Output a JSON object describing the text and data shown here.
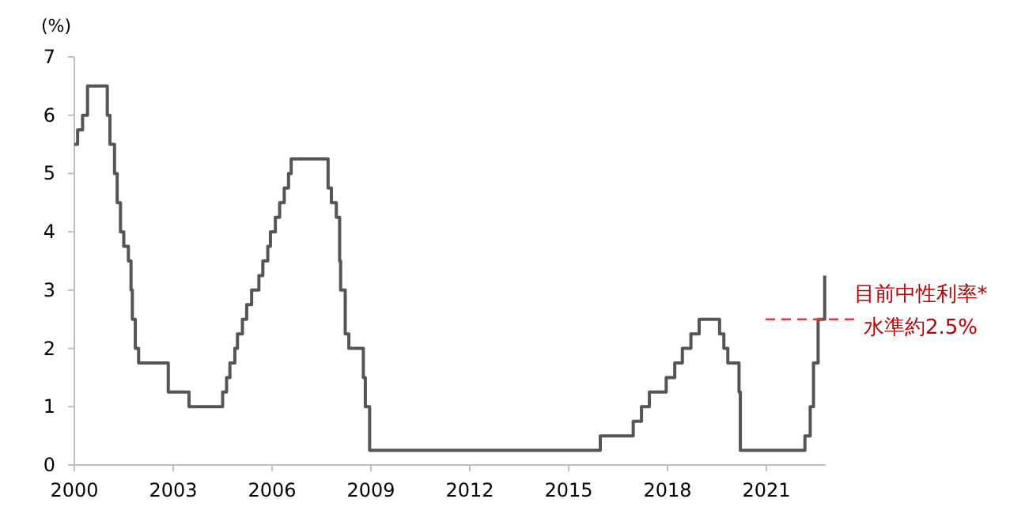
{
  "chart_data": {
    "type": "step",
    "ylabel": "(%)",
    "x": [
      2000.0,
      2000.1,
      2000.25,
      2000.4,
      2001.0,
      2001.08,
      2001.22,
      2001.3,
      2001.4,
      2001.5,
      2001.64,
      2001.72,
      2001.76,
      2001.85,
      2001.95,
      2002.85,
      2003.48,
      2004.5,
      2004.62,
      2004.72,
      2004.87,
      2004.95,
      2005.1,
      2005.23,
      2005.38,
      2005.6,
      2005.72,
      2005.87,
      2005.95,
      2006.1,
      2006.23,
      2006.37,
      2006.5,
      2006.58,
      2007.7,
      2007.8,
      2007.95,
      2008.05,
      2008.08,
      2008.22,
      2008.33,
      2008.77,
      2008.83,
      2008.96,
      2015.96,
      2016.96,
      2017.21,
      2017.45,
      2017.96,
      2018.22,
      2018.45,
      2018.71,
      2018.96,
      2019.58,
      2019.71,
      2019.83,
      2020.17,
      2020.21,
      2022.17,
      2022.33,
      2022.43,
      2022.57,
      2022.77
    ],
    "series": [
      {
        "color": "#555555",
        "values": [
          5.5,
          5.75,
          6.0,
          6.5,
          6.0,
          5.5,
          5.0,
          4.5,
          4.0,
          3.75,
          3.5,
          3.0,
          2.5,
          2.0,
          1.75,
          1.25,
          1.0,
          1.25,
          1.5,
          1.75,
          2.0,
          2.25,
          2.5,
          2.75,
          3.0,
          3.25,
          3.5,
          3.75,
          4.0,
          4.25,
          4.5,
          4.75,
          5.0,
          5.25,
          4.75,
          4.5,
          4.25,
          3.5,
          3.0,
          2.25,
          2.0,
          1.5,
          1.0,
          0.25,
          0.5,
          0.75,
          1.0,
          1.25,
          1.5,
          1.75,
          2.0,
          2.25,
          2.5,
          2.25,
          2.0,
          1.75,
          1.25,
          0.25,
          0.5,
          1.0,
          1.75,
          2.5,
          3.25
        ]
      }
    ],
    "xlim": [
      2000,
      2022.8
    ],
    "xticks": [
      2000,
      2003,
      2006,
      2009,
      2012,
      2015,
      2018,
      2021
    ],
    "ylim": [
      0,
      7
    ],
    "yticks": [
      0,
      1,
      2,
      3,
      4,
      5,
      6,
      7
    ],
    "grid": false,
    "ref_lines": [
      {
        "axis": "y",
        "value": 2.5,
        "label": "目前中性利率*\n水準約2.5%",
        "color": "#e03c3c",
        "line_style": "dashed"
      }
    ]
  }
}
